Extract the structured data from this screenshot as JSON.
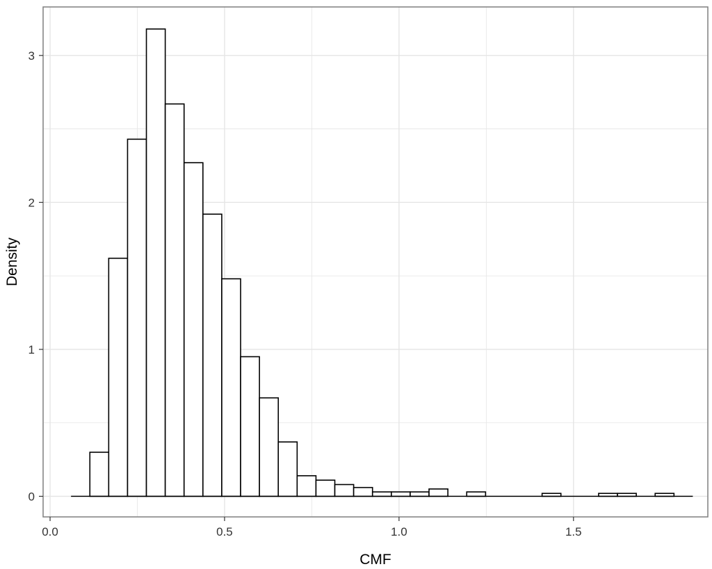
{
  "chart_data": {
    "type": "bar",
    "subtype": "histogram",
    "title": "",
    "xlabel": "CMF",
    "ylabel": "Density",
    "xlim": [
      -0.02,
      1.885
    ],
    "ylim": [
      -0.14,
      3.33
    ],
    "x_ticks": [
      0.0,
      0.5,
      1.0,
      1.5
    ],
    "x_tick_labels": [
      "0.0",
      "0.5",
      "1.0",
      "1.5"
    ],
    "y_ticks": [
      0,
      1,
      2,
      3
    ],
    "y_tick_labels": [
      "0",
      "1",
      "2",
      "3"
    ],
    "grid": true,
    "legend": "none",
    "bin_edges": [
      0.06,
      0.114,
      0.168,
      0.222,
      0.276,
      0.33,
      0.384,
      0.438,
      0.492,
      0.546,
      0.6,
      0.654,
      0.708,
      0.762,
      0.816,
      0.87,
      0.924,
      0.978,
      1.032,
      1.086,
      1.14,
      1.194,
      1.248,
      1.302,
      1.356,
      1.41,
      1.464,
      1.518,
      1.572,
      1.626,
      1.68,
      1.734,
      1.788,
      1.842
    ],
    "values": [
      0,
      0.3,
      1.62,
      2.43,
      3.18,
      2.67,
      2.27,
      1.92,
      1.48,
      0.95,
      0.67,
      0.37,
      0.14,
      0.11,
      0.08,
      0.06,
      0.03,
      0.03,
      0.03,
      0.05,
      0,
      0.03,
      0,
      0,
      0,
      0.02,
      0,
      0,
      0.02,
      0.02,
      0,
      0.02,
      0
    ]
  },
  "colors": {
    "panel_border": "#7f7f7f",
    "grid": "#e5e5e5",
    "bar_fill": "#ffffff",
    "bar_stroke": "#000000",
    "tick": "#333333"
  }
}
